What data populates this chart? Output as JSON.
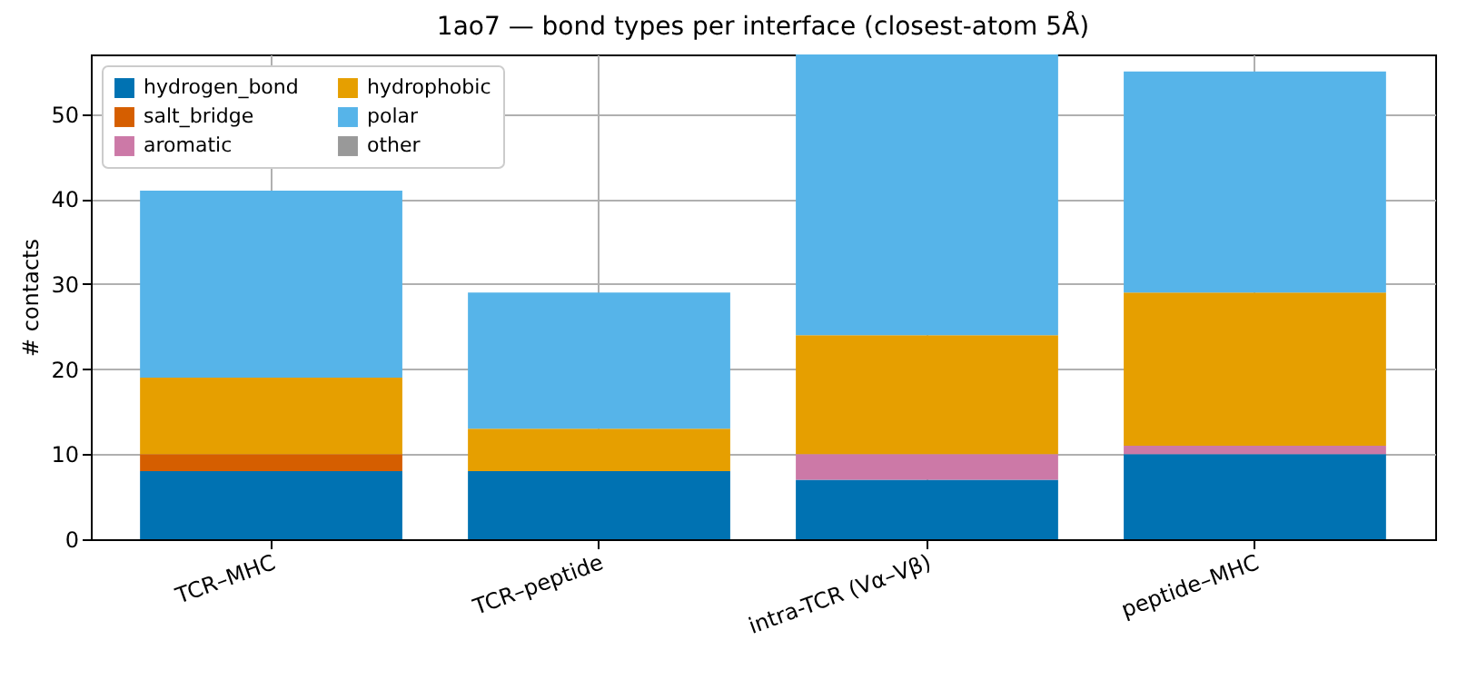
{
  "chart_data": {
    "type": "bar",
    "title": "1ao7 — bond types per interface (closest-atom 5Å)",
    "ylabel": "# contacts",
    "categories": [
      "TCR–MHC",
      "TCR–peptide",
      "intra-TCR (Vα–Vβ)",
      "peptide–MHC"
    ],
    "stacked": true,
    "series": [
      {
        "name": "hydrogen_bond",
        "color": "#0072b2",
        "values": [
          8,
          8,
          7,
          10
        ]
      },
      {
        "name": "salt_bridge",
        "color": "#d55e00",
        "values": [
          2,
          0,
          0,
          0
        ]
      },
      {
        "name": "aromatic",
        "color": "#cc79a7",
        "values": [
          0,
          0,
          3,
          1
        ]
      },
      {
        "name": "hydrophobic",
        "color": "#e69f00",
        "values": [
          9,
          5,
          14,
          18
        ]
      },
      {
        "name": "polar",
        "color": "#56b4e9",
        "values": [
          22,
          16,
          33,
          26
        ]
      },
      {
        "name": "other",
        "color": "#999999",
        "values": [
          0,
          0,
          0,
          0
        ]
      }
    ],
    "ylim": [
      0,
      57
    ],
    "yticks": [
      0,
      10,
      20,
      30,
      40,
      50
    ],
    "grid": true,
    "legend": "top left"
  }
}
